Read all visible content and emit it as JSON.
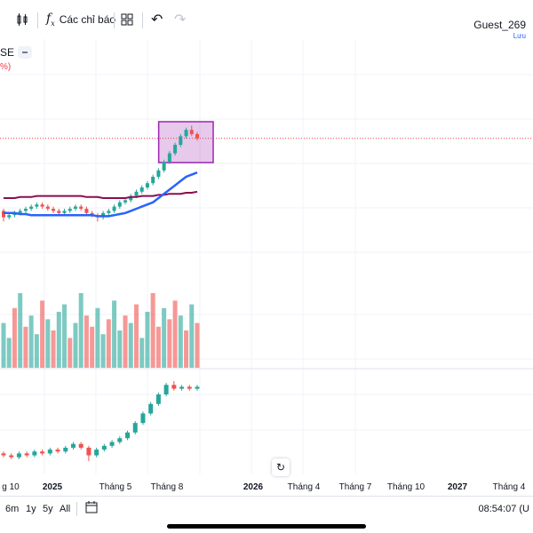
{
  "toolbar": {
    "indicators_label": "Các chỉ báo",
    "user_name": "Guest_269",
    "save_label": "Lưu",
    "icons": [
      "candles-icon",
      "fx-icon",
      "layouts-icon",
      "undo-icon",
      "redo-icon"
    ]
  },
  "legend": {
    "symbol_tail": "SE",
    "change_tail": "%)"
  },
  "time_axis": [
    "g 10",
    "2025",
    "Tháng 5",
    "Tháng 8",
    "2026",
    "Tháng 4",
    "Tháng 7",
    "Tháng 10",
    "2027",
    "Tháng 4"
  ],
  "range_buttons": [
    "6m",
    "1y",
    "5y",
    "All"
  ],
  "clock": "08:54:07 (U",
  "colors": {
    "up": "#26a69a",
    "down": "#ef5350",
    "ma_short": "#2962ff",
    "ma_long": "#880e4f",
    "highlight": "#9c27b0",
    "price_line": "#f23645"
  },
  "chart_data": [
    {
      "type": "candlestick",
      "series": [
        {
          "name": "",
          "values": [
            [
              39,
              36,
              40,
              34
            ],
            [
              36,
              37,
              38,
              35
            ],
            [
              37,
              38,
              39,
              36
            ],
            [
              38,
              39,
              40,
              37
            ],
            [
              39,
              40,
              41,
              38
            ],
            [
              40,
              41,
              42,
              39
            ],
            [
              41,
              42,
              43,
              40
            ],
            [
              42,
              41,
              43,
              40
            ],
            [
              41,
              40,
              42,
              39
            ],
            [
              40,
              39,
              41,
              38
            ],
            [
              39,
              38,
              40,
              37
            ],
            [
              38,
              39,
              40,
              37
            ],
            [
              39,
              40,
              41,
              38
            ],
            [
              40,
              41,
              42,
              39
            ],
            [
              41,
              40,
              42,
              39
            ],
            [
              40,
              38,
              41,
              37
            ],
            [
              38,
              37,
              39,
              36
            ],
            [
              37,
              36,
              38,
              34
            ],
            [
              36,
              38,
              39,
              35
            ],
            [
              38,
              39,
              40,
              37
            ],
            [
              39,
              41,
              42,
              38
            ],
            [
              41,
              43,
              44,
              40
            ],
            [
              43,
              44,
              45,
              42
            ],
            [
              44,
              46,
              47,
              43
            ],
            [
              46,
              48,
              49,
              45
            ],
            [
              48,
              50,
              51,
              47
            ],
            [
              50,
              52,
              53,
              49
            ],
            [
              52,
              55,
              56,
              51
            ],
            [
              55,
              58,
              59,
              54
            ],
            [
              58,
              62,
              63,
              57
            ],
            [
              62,
              66,
              67,
              61
            ],
            [
              66,
              70,
              71,
              65
            ],
            [
              70,
              74,
              75,
              69
            ],
            [
              74,
              77,
              78,
              73
            ],
            [
              77,
              75,
              79,
              74
            ],
            [
              75,
              73,
              76,
              72
            ]
          ]
        },
        {
          "name": "",
          "values": [
            38,
            38,
            38,
            37.5,
            37.5,
            37,
            37,
            37,
            37,
            37,
            37,
            37,
            37,
            37,
            37,
            37,
            37,
            36.5,
            36.5,
            36.5,
            37,
            37.5,
            38,
            39,
            40,
            41,
            42,
            43,
            45,
            47,
            49,
            51,
            53,
            55,
            56,
            57
          ]
        },
        {
          "name": "",
          "values": [
            45,
            45,
            45,
            45.5,
            45.5,
            45.5,
            46,
            46,
            46,
            46,
            46,
            46,
            46,
            46,
            46,
            45.5,
            45.5,
            45.5,
            45,
            45,
            45,
            45,
            45,
            45.5,
            45.5,
            46,
            46,
            46,
            46.5,
            46.5,
            47,
            47,
            47,
            47.5,
            47.5,
            48
          ]
        }
      ]
    },
    {
      "type": "bar",
      "values": [
        60,
        40,
        80,
        100,
        55,
        70,
        45,
        90,
        65,
        50,
        75,
        85,
        40,
        60,
        100,
        70,
        55,
        80,
        45,
        65,
        90,
        50,
        70,
        60,
        85,
        40,
        75,
        100,
        55,
        80,
        65,
        90,
        70,
        50,
        85,
        60
      ],
      "directions": [
        "up",
        "up",
        "down",
        "up",
        "down",
        "up",
        "up",
        "down",
        "up",
        "down",
        "up",
        "up",
        "down",
        "up",
        "up",
        "down",
        "down",
        "up",
        "up",
        "down",
        "up",
        "up",
        "down",
        "up",
        "down",
        "up",
        "up",
        "down",
        "down",
        "up",
        "down",
        "down",
        "up",
        "down",
        "up",
        "down"
      ]
    },
    {
      "type": "candlestick",
      "values": [
        [
          24,
          23,
          25,
          22
        ],
        [
          23,
          22,
          24,
          21
        ],
        [
          22,
          24,
          25,
          21
        ],
        [
          24,
          23,
          25,
          22
        ],
        [
          23,
          25,
          26,
          22
        ],
        [
          25,
          24,
          26,
          23
        ],
        [
          24,
          26,
          27,
          23
        ],
        [
          26,
          25,
          27,
          24
        ],
        [
          25,
          27,
          28,
          24
        ],
        [
          27,
          29,
          30,
          26
        ],
        [
          29,
          27,
          30,
          26
        ],
        [
          27,
          23,
          28,
          20
        ],
        [
          23,
          26,
          27,
          22
        ],
        [
          26,
          28,
          29,
          25
        ],
        [
          28,
          30,
          31,
          27
        ],
        [
          30,
          32,
          33,
          29
        ],
        [
          32,
          35,
          36,
          31
        ],
        [
          35,
          40,
          41,
          34
        ],
        [
          40,
          45,
          46,
          39
        ],
        [
          45,
          50,
          51,
          44
        ],
        [
          50,
          55,
          56,
          49
        ],
        [
          55,
          60,
          61,
          54
        ],
        [
          60,
          58,
          62,
          57
        ],
        [
          58,
          59,
          60,
          57
        ],
        [
          59,
          58,
          60,
          57
        ],
        [
          58,
          59,
          60,
          57
        ]
      ]
    }
  ]
}
